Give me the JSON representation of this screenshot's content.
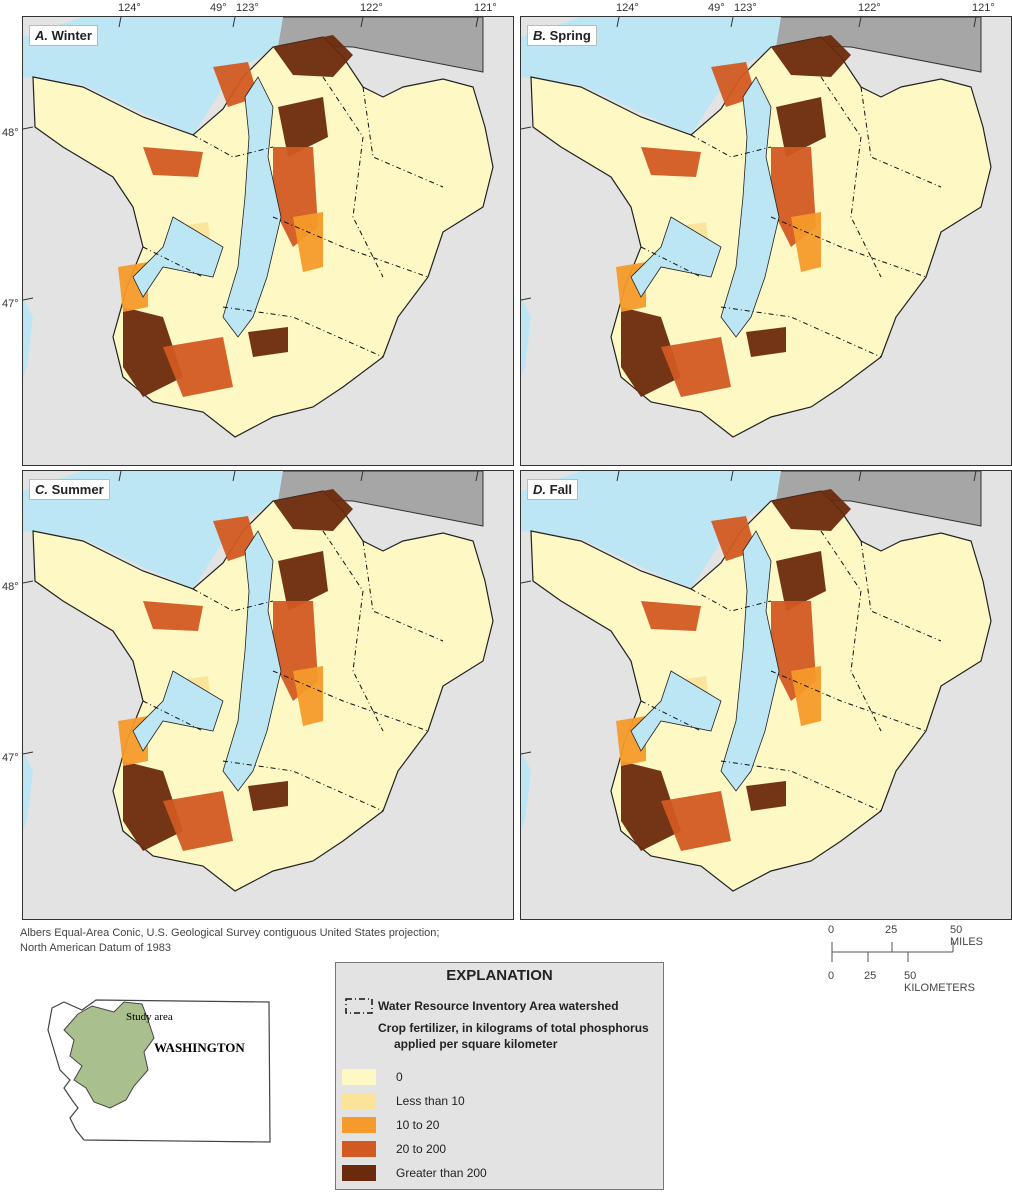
{
  "panels": [
    {
      "letter": "A.",
      "season": "Winter"
    },
    {
      "letter": "B.",
      "season": "Spring"
    },
    {
      "letter": "C.",
      "season": "Summer"
    },
    {
      "letter": "D.",
      "season": "Fall"
    }
  ],
  "lon_labels": [
    "124°",
    "49°",
    "123°",
    "122°",
    "121°"
  ],
  "lat_labels": [
    "48°",
    "47°"
  ],
  "credit": {
    "line1": "Albers Equal-Area Conic, U.S. Geological Survey contiguous United States projection;",
    "line2": "North American Datum of 1983"
  },
  "scale": {
    "miles": [
      "0",
      "25",
      "50 MILES"
    ],
    "km": [
      "0",
      "25",
      "50 KILOMETERS"
    ]
  },
  "locator": {
    "study_area": "Study area",
    "state": "WASHINGTON"
  },
  "legend": {
    "title": "EXPLANATION",
    "watershed": "Water Resource Inventory Area watershed",
    "crop_title_1": "Crop fertilizer, in kilograms of total phosphorus",
    "crop_title_2": "applied per square kilometer",
    "classes": [
      {
        "label": "0",
        "color": "#fdf8c4"
      },
      {
        "label": "Less than 10",
        "color": "#fbe39a"
      },
      {
        "label": "10 to 20",
        "color": "#f69a2b"
      },
      {
        "label": "20 to 200",
        "color": "#d25a22"
      },
      {
        "label": "Greater than 200",
        "color": "#6b2a0c"
      }
    ]
  },
  "colors": {
    "water": "#bde6f5",
    "land_out": "#e3e3e3",
    "canada": "#a6a6a6"
  }
}
